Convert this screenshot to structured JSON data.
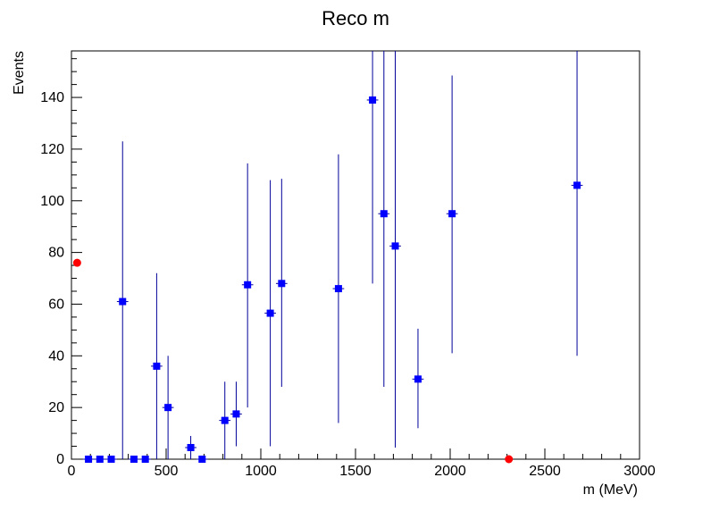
{
  "chart_data": {
    "type": "scatter",
    "title": "Reco m",
    "xlabel": "m (MeV)",
    "ylabel": "Events",
    "xlim": [
      0,
      3000
    ],
    "ylim": [
      0,
      158
    ],
    "x_ticks": [
      0,
      500,
      1000,
      1500,
      2000,
      2500,
      3000
    ],
    "y_ticks": [
      0,
      20,
      40,
      60,
      80,
      100,
      120,
      140
    ],
    "grid": false,
    "series": [
      {
        "name": "blue points",
        "color": "#0000ff",
        "error_color": "#000099",
        "marker": "square",
        "bin_halfwidth": 30,
        "points": [
          {
            "x": 90,
            "y": 0,
            "err_lo": 0,
            "err_hi": 0
          },
          {
            "x": 150,
            "y": 0,
            "err_lo": 0,
            "err_hi": 0
          },
          {
            "x": 210,
            "y": 0,
            "err_lo": 0,
            "err_hi": 0
          },
          {
            "x": 270,
            "y": 61,
            "err_lo": 61,
            "err_hi": 62
          },
          {
            "x": 330,
            "y": 0,
            "err_lo": 0,
            "err_hi": 0
          },
          {
            "x": 390,
            "y": 0,
            "err_lo": 0,
            "err_hi": 0
          },
          {
            "x": 450,
            "y": 36,
            "err_lo": 36,
            "err_hi": 36
          },
          {
            "x": 510,
            "y": 20,
            "err_lo": 20,
            "err_hi": 20
          },
          {
            "x": 630,
            "y": 4.5,
            "err_lo": 4.5,
            "err_hi": 4.5
          },
          {
            "x": 690,
            "y": 0,
            "err_lo": 0,
            "err_hi": 0
          },
          {
            "x": 810,
            "y": 15,
            "err_lo": 15,
            "err_hi": 15
          },
          {
            "x": 870,
            "y": 17.5,
            "err_lo": 12.5,
            "err_hi": 12.5
          },
          {
            "x": 930,
            "y": 67.5,
            "err_lo": 47.5,
            "err_hi": 47
          },
          {
            "x": 1050,
            "y": 56.5,
            "err_lo": 51.5,
            "err_hi": 51.5
          },
          {
            "x": 1110,
            "y": 68,
            "err_lo": 40,
            "err_hi": 40.5
          },
          {
            "x": 1410,
            "y": 66,
            "err_lo": 52,
            "err_hi": 52
          },
          {
            "x": 1590,
            "y": 139,
            "err_lo": 71,
            "err_hi": 19
          },
          {
            "x": 1650,
            "y": 95,
            "err_lo": 67,
            "err_hi": 63
          },
          {
            "x": 1710,
            "y": 82.5,
            "err_lo": 78,
            "err_hi": 75.5
          },
          {
            "x": 1830,
            "y": 31,
            "err_lo": 19,
            "err_hi": 19.5
          },
          {
            "x": 2010,
            "y": 95,
            "err_lo": 54,
            "err_hi": 53.5
          },
          {
            "x": 2670,
            "y": 106,
            "err_lo": 66,
            "err_hi": 52
          }
        ]
      },
      {
        "name": "red points",
        "color": "#ff0000",
        "marker": "circle",
        "points": [
          {
            "x": 30,
            "y": 76
          },
          {
            "x": 2310,
            "y": 0
          }
        ]
      }
    ]
  }
}
